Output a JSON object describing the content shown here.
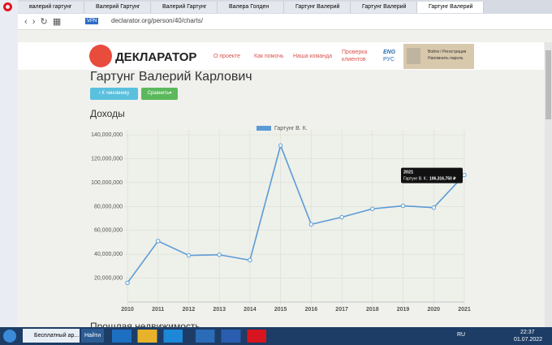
{
  "browser": {
    "tabs": [
      "валерий гартунг",
      "Валерий Гартунг",
      "Валерий Гартунг",
      "Валера Голден",
      "Гартунг Валерий",
      "Гартунг Валерий",
      "Гартунг Валерий"
    ],
    "vpn": "VPN",
    "url": "declarator.org/person/40/charts/"
  },
  "site": {
    "logo": "ДЕКЛАРАТОР",
    "nav": [
      "О проекте",
      "Как помочь",
      "Наша команда"
    ],
    "nav_check": [
      "Проверка",
      "клиентов"
    ],
    "lang": [
      "ENG",
      "РУС"
    ],
    "login": "Войти / Регистрация",
    "remind": "Напомнить пароль"
  },
  "page": {
    "title": "Гартунг Валерий Карлович",
    "buttons": [
      "К чиновнику",
      "Сравнить"
    ],
    "section": "Доходы",
    "next_section": "Прошлая недвижимость"
  },
  "chart_data": {
    "type": "line",
    "categories": [
      "2010",
      "2011",
      "2012",
      "2013",
      "2014",
      "2015",
      "2016",
      "2017",
      "2018",
      "2019",
      "2020",
      "2021"
    ],
    "series": [
      {
        "name": "Гартунг В. К.",
        "color": "#5b9bd5",
        "values": [
          16000000,
          51000000,
          39000000,
          39500000,
          35000000,
          131000000,
          65000000,
          71000000,
          78000000,
          80500000,
          79000000,
          106316750
        ]
      }
    ],
    "ylim": [
      0,
      140000000
    ],
    "yticks": [
      {
        "value": 20000000,
        "label": "20,000,000"
      },
      {
        "value": 40000000,
        "label": "40,000,000"
      },
      {
        "value": 60000000,
        "label": "60,000,000"
      },
      {
        "value": 80000000,
        "label": "80,000,000"
      },
      {
        "value": 100000000,
        "label": "100,000,000"
      },
      {
        "value": 120000000,
        "label": "120,000,000"
      },
      {
        "value": 140000000,
        "label": "140,000,000"
      }
    ],
    "grid": true,
    "tooltip": {
      "category": "2021",
      "series_label": "Гартунг В. К.:",
      "value_label": "106,316,750 ₽"
    }
  },
  "taskbar": {
    "app": "Бесплатный ар...",
    "search": "Найти",
    "lang": "RU",
    "time": "22:37",
    "date": "01.07.2022"
  }
}
